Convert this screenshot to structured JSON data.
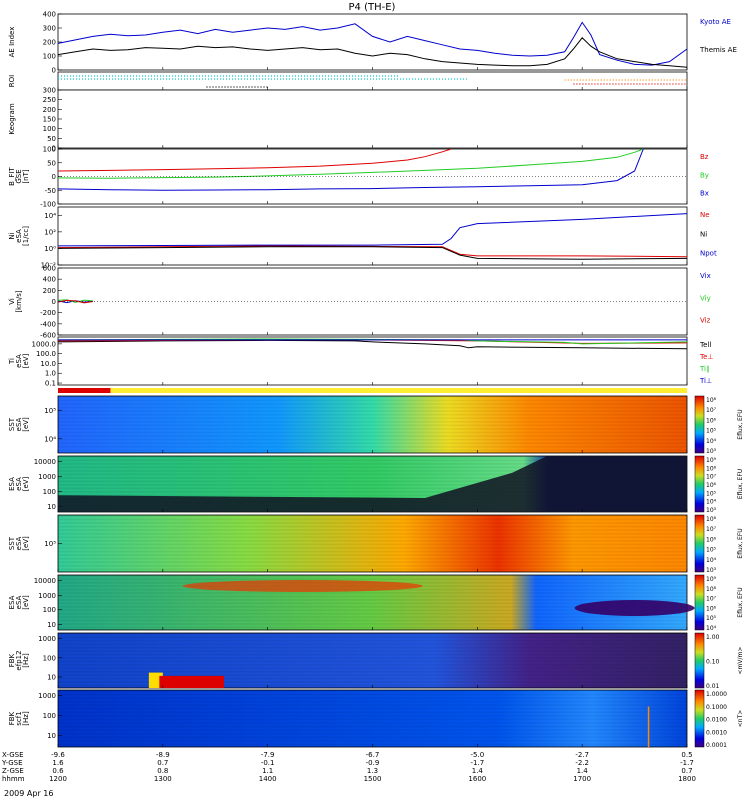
{
  "title": "P4 (TH-E)",
  "date_label": "2009 Apr 16",
  "footer_rows": [
    {
      "label": "X-GSE",
      "values": [
        "-9.6",
        "-8.9",
        "-7.9",
        "-6.7",
        "-5.0",
        "-2.7",
        "0.5"
      ]
    },
    {
      "label": "Y-GSE",
      "values": [
        "1.6",
        "0.7",
        "-0.1",
        "-0.9",
        "-1.7",
        "-2.2",
        "-1.7"
      ]
    },
    {
      "label": "Z-GSE",
      "values": [
        "0.6",
        "0.8",
        "1.1",
        "1.3",
        "1.4",
        "1.4",
        "0.7"
      ]
    },
    {
      "label": "hhmm",
      "values": [
        "1200",
        "1300",
        "1400",
        "1500",
        "1600",
        "1700",
        "1800"
      ]
    }
  ],
  "colors": {
    "red": "#dd0000",
    "green": "#22cc22",
    "blue": "#0000cc",
    "cyan": "#00cccc",
    "orange": "#ff8800",
    "black": "#000000",
    "bar_yellow": "#ffee33",
    "bar_red": "#dd0000"
  },
  "chart_data": [
    {
      "type": "line",
      "id": "ae",
      "ylabel": "AE Index",
      "ylim": [
        0,
        400
      ],
      "yticks": [
        "400",
        "300",
        "200",
        "100",
        "0"
      ],
      "ytick_values": [
        400,
        300,
        200,
        100,
        0
      ],
      "series": [
        {
          "name": "Kyoto AE",
          "color": "#0000cc",
          "x": [
            1200,
            1210,
            1220,
            1230,
            1240,
            1250,
            1300,
            1310,
            1320,
            1330,
            1340,
            1350,
            1400,
            1410,
            1420,
            1430,
            1440,
            1450,
            1500,
            1510,
            1520,
            1530,
            1540,
            1550,
            1600,
            1610,
            1620,
            1630,
            1640,
            1650,
            1655,
            1700,
            1705,
            1710,
            1720,
            1730,
            1740,
            1750,
            1800
          ],
          "values": [
            190,
            215,
            240,
            255,
            245,
            250,
            270,
            285,
            260,
            290,
            270,
            285,
            300,
            290,
            310,
            285,
            300,
            330,
            240,
            200,
            240,
            210,
            180,
            150,
            140,
            120,
            105,
            100,
            105,
            130,
            230,
            340,
            250,
            110,
            70,
            40,
            35,
            60,
            150
          ]
        },
        {
          "name": "Themis AE",
          "color": "#000000",
          "x": [
            1200,
            1210,
            1220,
            1230,
            1240,
            1250,
            1300,
            1310,
            1320,
            1330,
            1340,
            1350,
            1400,
            1410,
            1420,
            1430,
            1440,
            1450,
            1500,
            1510,
            1520,
            1530,
            1540,
            1550,
            1600,
            1610,
            1620,
            1630,
            1640,
            1650,
            1655,
            1700,
            1705,
            1710,
            1720,
            1730,
            1740,
            1750,
            1800
          ],
          "values": [
            110,
            130,
            150,
            140,
            145,
            160,
            155,
            150,
            170,
            160,
            165,
            150,
            140,
            150,
            160,
            145,
            150,
            120,
            100,
            120,
            110,
            80,
            60,
            50,
            40,
            35,
            30,
            30,
            40,
            80,
            150,
            230,
            170,
            130,
            80,
            60,
            40,
            30,
            20
          ]
        }
      ]
    },
    {
      "type": "bar",
      "id": "roi",
      "ylabel": "ROI"
    },
    {
      "type": "line",
      "id": "keogram",
      "ylabel": "Keogram",
      "ylim": [
        0,
        300
      ],
      "yticks": [
        "300",
        "250",
        "200",
        "150",
        "100",
        "50",
        "0"
      ],
      "ytick_values": [
        300,
        250,
        200,
        150,
        100,
        50,
        0
      ]
    },
    {
      "type": "line",
      "id": "bfit",
      "ylabel": "B_FIT",
      "ylabel2": "GSE",
      "ylabel3": "[nT]",
      "ylim": [
        -100,
        100
      ],
      "yticks": [
        "100",
        "50",
        "0",
        "-50",
        "-100"
      ],
      "ytick_values": [
        100,
        50,
        0,
        -50,
        -100
      ],
      "series": [
        {
          "name": "Bz",
          "color": "#dd0000",
          "x": [
            1200,
            1230,
            1300,
            1330,
            1400,
            1430,
            1500,
            1520,
            1530,
            1540,
            1545
          ],
          "values": [
            20,
            22,
            25,
            28,
            32,
            38,
            48,
            60,
            72,
            90,
            100
          ]
        },
        {
          "name": "By",
          "color": "#22cc22",
          "x": [
            1200,
            1230,
            1300,
            1330,
            1400,
            1430,
            1500,
            1530,
            1600,
            1630,
            1700,
            1720,
            1730,
            1735
          ],
          "values": [
            -5,
            -6,
            -4,
            -2,
            2,
            8,
            15,
            22,
            30,
            42,
            55,
            70,
            88,
            100
          ]
        },
        {
          "name": "Bx",
          "color": "#0000cc",
          "x": [
            1200,
            1230,
            1300,
            1330,
            1400,
            1430,
            1500,
            1530,
            1600,
            1630,
            1700,
            1720,
            1730,
            1735
          ],
          "values": [
            -45,
            -48,
            -50,
            -49,
            -48,
            -45,
            -44,
            -40,
            -37,
            -34,
            -30,
            -15,
            20,
            100
          ]
        }
      ]
    },
    {
      "type": "line",
      "id": "ni",
      "ylabel": "Ni",
      "ylabel2": "eSA",
      "ylabel3": "[1/cc]",
      "ylim": [
        -2,
        5
      ],
      "yscale": "log",
      "yticks": [
        "10⁴",
        "10²",
        "10⁰",
        "10⁻²"
      ],
      "ytick_values": [
        4,
        2,
        0,
        -2
      ],
      "series": [
        {
          "name": "Ne",
          "color": "#dd0000",
          "x": [
            1200,
            1300,
            1400,
            1500,
            1540,
            1550,
            1600,
            1700,
            1800
          ],
          "values": [
            0.1,
            0.2,
            0.3,
            0.25,
            0.2,
            -0.7,
            -0.9,
            -0.9,
            -1.0
          ]
        },
        {
          "name": "Ni",
          "color": "#000000",
          "x": [
            1200,
            1300,
            1400,
            1500,
            1540,
            1550,
            1600,
            1700,
            1800
          ],
          "values": [
            0.0,
            0.1,
            0.2,
            0.2,
            0.1,
            -0.8,
            -1.2,
            -1.3,
            -1.2
          ]
        },
        {
          "name": "Npot",
          "color": "#0000cc",
          "x": [
            1200,
            1300,
            1400,
            1500,
            1540,
            1545,
            1550,
            1600,
            1700,
            1800
          ],
          "values": [
            0.3,
            0.35,
            0.4,
            0.4,
            0.5,
            1.2,
            2.5,
            3.0,
            3.5,
            4.2
          ]
        }
      ]
    },
    {
      "type": "line",
      "id": "vi",
      "ylabel": "Vi",
      "ylabel3": "[km/s]",
      "ylim": [
        -600,
        600
      ],
      "yticks": [
        "600",
        "400",
        "200",
        "0",
        "-200",
        "-400",
        "-600"
      ],
      "ytick_values": [
        600,
        400,
        200,
        0,
        -200,
        -400,
        -600
      ],
      "series": [
        {
          "name": "Vix",
          "color": "#0000cc",
          "x": [
            1200,
            1205,
            1210,
            1215,
            1220
          ],
          "values": [
            10,
            -20,
            15,
            -10,
            5
          ]
        },
        {
          "name": "Viy",
          "color": "#22cc22",
          "x": [
            1200,
            1205,
            1210,
            1215,
            1220
          ],
          "values": [
            20,
            30,
            -15,
            25,
            10
          ]
        },
        {
          "name": "Viz",
          "color": "#dd0000",
          "x": [
            1200,
            1205,
            1210,
            1215,
            1220
          ],
          "values": [
            -10,
            20,
            10,
            -25,
            0
          ]
        }
      ]
    },
    {
      "type": "line",
      "id": "ti",
      "ylabel": "Ti",
      "ylabel2": "eSA",
      "ylabel3": "[eV]",
      "ylim": [
        -1.2,
        3.7
      ],
      "yscale": "log",
      "yticks": [
        "1000.0",
        "100.0",
        "10.0",
        "1.0",
        "0.1"
      ],
      "ytick_values": [
        3,
        2,
        1,
        0,
        -1
      ],
      "series": [
        {
          "name": "Tell",
          "color": "#000000",
          "x": [
            1200,
            1300,
            1400,
            1450,
            1500,
            1530,
            1550,
            1555,
            1600,
            1700,
            1800
          ],
          "values": [
            3.2,
            3.3,
            3.35,
            3.3,
            3.2,
            3.0,
            2.8,
            2.6,
            2.7,
            2.6,
            2.5
          ]
        },
        {
          "name": "Te⊥",
          "color": "#dd0000",
          "x": [
            1200,
            1300,
            1400,
            1500,
            1600,
            1700,
            1800
          ],
          "values": [
            3.3,
            3.35,
            3.4,
            3.4,
            3.3,
            3.05,
            3.1
          ]
        },
        {
          "name": "Ti∥",
          "color": "#22cc22",
          "x": [
            1200,
            1300,
            1400,
            1500,
            1550,
            1600,
            1650,
            1700,
            1800
          ],
          "values": [
            3.4,
            3.45,
            3.5,
            3.45,
            3.4,
            3.3,
            3.15,
            3.0,
            3.2
          ]
        },
        {
          "name": "Ti⊥",
          "color": "#0000cc",
          "x": [
            1200,
            1800
          ],
          "values": [
            3.4,
            3.4
          ]
        }
      ]
    },
    {
      "type": "heatmap",
      "id": "sst_e",
      "ylabel": "SST",
      "ylabel2": "eSA",
      "ylabel3": "[eV]",
      "yticks": [
        "10⁵",
        "10⁴"
      ],
      "ytick_values": [
        0.25,
        0.75
      ],
      "cbar_label": "Eflux, EFU",
      "cbar_ticks": [
        "10⁸",
        "10⁷",
        "10⁶",
        "10⁵",
        "10⁴",
        "10³"
      ]
    },
    {
      "type": "heatmap",
      "id": "esa_e",
      "ylabel": "ESA",
      "ylabel2": "eSA",
      "ylabel3": "[eV]",
      "yticks": [
        "10000",
        "1000",
        "100",
        "10"
      ],
      "ytick_values": [
        0.1,
        0.37,
        0.63,
        0.9
      ],
      "cbar_label": "Eflux, EFU",
      "cbar_ticks": [
        "10⁹",
        "10⁸",
        "10⁷",
        "10⁶",
        "10⁵",
        "10⁴",
        "10³"
      ]
    },
    {
      "type": "heatmap",
      "id": "sst_i",
      "ylabel": "SST",
      "ylabel2": "eSA",
      "ylabel3": "[eV]",
      "yticks": [
        "10⁵"
      ],
      "ytick_values": [
        0.5
      ],
      "cbar_label": "Eflux, EFU",
      "cbar_ticks": [
        "10⁸",
        "10⁷",
        "10⁶",
        "10⁵",
        "10⁴",
        "10³"
      ]
    },
    {
      "type": "heatmap",
      "id": "esa_i",
      "ylabel": "ESA",
      "ylabel2": "eSA",
      "ylabel3": "[eV]",
      "yticks": [
        "10000",
        "1000",
        "100",
        "10"
      ],
      "ytick_values": [
        0.1,
        0.37,
        0.63,
        0.9
      ],
      "cbar_label": "Eflux, EFU",
      "cbar_ticks": [
        "10⁹",
        "10⁸",
        "10⁷",
        "10⁶",
        "10⁵",
        "10⁴"
      ]
    },
    {
      "type": "heatmap",
      "id": "fbk_e",
      "ylabel": "FBK",
      "ylabel2": "efp12",
      "ylabel3": "[Hz]",
      "yticks": [
        "1000",
        "100",
        "10"
      ],
      "ytick_values": [
        0.1,
        0.45,
        0.8
      ],
      "cbar_label": "<mV/m>",
      "cbar_ticks": [
        "1.00",
        "0.10",
        "0.01"
      ]
    },
    {
      "type": "heatmap",
      "id": "fbk_b",
      "ylabel": "FBK",
      "ylabel2": "scf1",
      "ylabel3": "[Hz]",
      "yticks": [
        "1000",
        "100",
        "10"
      ],
      "ytick_values": [
        0.1,
        0.45,
        0.8
      ],
      "cbar_label": "<nT>",
      "cbar_ticks": [
        "1.0000",
        "0.1000",
        "0.0100",
        "0.0010",
        "0.0001"
      ]
    }
  ]
}
